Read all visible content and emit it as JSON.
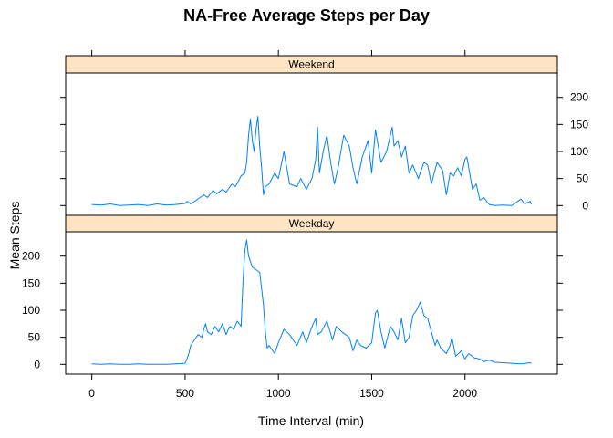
{
  "chart_data": {
    "type": "line",
    "title": "NA-Free Average Steps per Day",
    "xlabel": "Time Interval (min)",
    "ylabel": "Mean Steps",
    "xlim": [
      -140,
      2495
    ],
    "ylim": [
      -18,
      245
    ],
    "x_ticks": [
      0,
      500,
      1000,
      1500,
      2000
    ],
    "x_tick_labels": [
      "0",
      "500",
      "1000",
      "1500",
      "2000"
    ],
    "y_ticks": [
      0,
      50,
      100,
      150,
      200
    ],
    "y_tick_labels": [
      "0",
      "50",
      "100",
      "150",
      "200"
    ],
    "strip_color": "#FFE4C4",
    "line_color": "#0080FF",
    "panels": [
      {
        "strip": "Weekend",
        "x": [
          0,
          50,
          100,
          150,
          200,
          250,
          300,
          350,
          400,
          450,
          500,
          510,
          530,
          560,
          600,
          620,
          650,
          670,
          700,
          720,
          750,
          770,
          800,
          820,
          830,
          840,
          850,
          860,
          870,
          880,
          890,
          900,
          910,
          920,
          930,
          950,
          980,
          1000,
          1030,
          1060,
          1100,
          1120,
          1150,
          1180,
          1200,
          1210,
          1220,
          1240,
          1260,
          1280,
          1300,
          1320,
          1350,
          1380,
          1400,
          1420,
          1450,
          1480,
          1500,
          1520,
          1550,
          1580,
          1600,
          1610,
          1620,
          1640,
          1660,
          1680,
          1700,
          1720,
          1750,
          1780,
          1800,
          1820,
          1850,
          1870,
          1880,
          1900,
          1920,
          1940,
          1960,
          1980,
          2000,
          2010,
          2020,
          2040,
          2060,
          2080,
          2100,
          2130,
          2160,
          2200,
          2250,
          2300,
          2320,
          2350,
          2355
        ],
        "y": [
          2,
          1,
          3,
          0,
          1,
          2,
          0,
          3,
          1,
          2,
          4,
          8,
          3,
          10,
          20,
          15,
          28,
          22,
          30,
          25,
          40,
          35,
          55,
          60,
          80,
          130,
          160,
          120,
          100,
          140,
          165,
          110,
          70,
          20,
          35,
          40,
          60,
          50,
          100,
          40,
          35,
          50,
          30,
          50,
          85,
          145,
          60,
          100,
          130,
          80,
          40,
          70,
          130,
          110,
          70,
          40,
          90,
          120,
          60,
          140,
          80,
          100,
          130,
          145,
          110,
          120,
          90,
          110,
          60,
          75,
          50,
          80,
          75,
          40,
          80,
          70,
          65,
          20,
          60,
          55,
          70,
          55,
          85,
          90,
          70,
          30,
          40,
          10,
          15,
          2,
          0,
          1,
          0,
          12,
          3,
          8,
          2
        ]
      },
      {
        "strip": "Weekday",
        "x": [
          0,
          50,
          100,
          150,
          200,
          250,
          300,
          350,
          400,
          450,
          500,
          510,
          520,
          530,
          550,
          570,
          590,
          600,
          610,
          620,
          640,
          660,
          680,
          700,
          720,
          740,
          760,
          780,
          800,
          810,
          820,
          830,
          840,
          850,
          860,
          880,
          900,
          920,
          930,
          940,
          950,
          980,
          1000,
          1030,
          1060,
          1100,
          1130,
          1150,
          1180,
          1200,
          1210,
          1230,
          1260,
          1290,
          1310,
          1340,
          1360,
          1380,
          1400,
          1420,
          1440,
          1470,
          1500,
          1520,
          1530,
          1550,
          1570,
          1600,
          1620,
          1640,
          1660,
          1680,
          1700,
          1720,
          1740,
          1760,
          1780,
          1800,
          1820,
          1840,
          1850,
          1870,
          1900,
          1920,
          1930,
          1950,
          1980,
          2000,
          2020,
          2050,
          2080,
          2100,
          2130,
          2160,
          2200,
          2250,
          2300,
          2350,
          2355
        ],
        "y": [
          1,
          0,
          1,
          0,
          0,
          1,
          0,
          0,
          0,
          1,
          2,
          10,
          20,
          35,
          45,
          55,
          50,
          65,
          75,
          60,
          55,
          70,
          60,
          75,
          55,
          70,
          65,
          80,
          70,
          150,
          210,
          230,
          200,
          190,
          180,
          175,
          170,
          110,
          60,
          30,
          35,
          20,
          40,
          65,
          55,
          35,
          60,
          40,
          70,
          85,
          55,
          60,
          80,
          45,
          70,
          60,
          55,
          50,
          25,
          45,
          35,
          30,
          40,
          95,
          100,
          60,
          30,
          70,
          60,
          45,
          85,
          40,
          50,
          90,
          100,
          115,
          90,
          85,
          60,
          35,
          45,
          30,
          20,
          35,
          50,
          15,
          25,
          10,
          20,
          12,
          10,
          5,
          8,
          4,
          3,
          2,
          1,
          3,
          2
        ]
      }
    ]
  }
}
